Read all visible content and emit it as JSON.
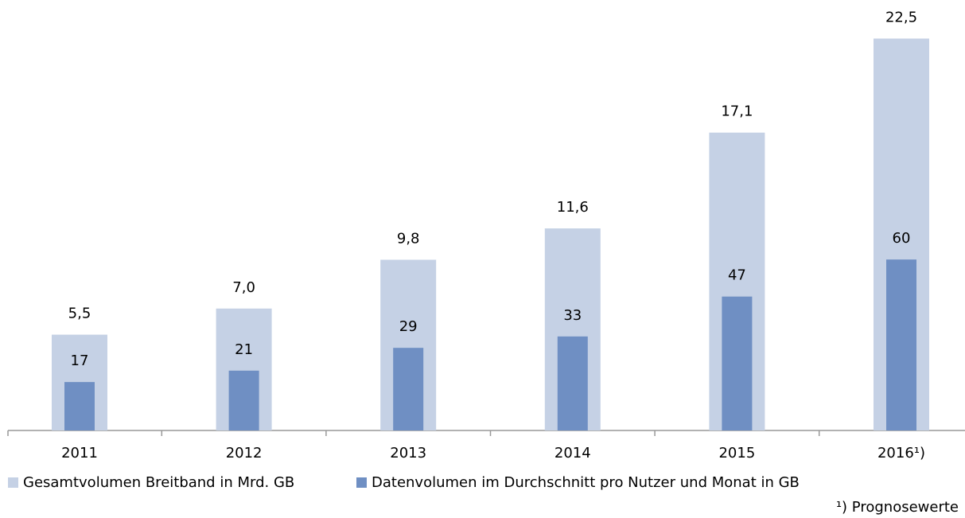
{
  "chart_data": {
    "type": "bar",
    "categories": [
      "2011",
      "2012",
      "2013",
      "2014",
      "2015",
      "2016¹)"
    ],
    "series": [
      {
        "name": "Gesamtvolumen Breitband in Mrd. GB",
        "color": "#c5d1e5",
        "values": [
          5.5,
          7.0,
          9.8,
          11.6,
          17.1,
          22.5
        ],
        "value_labels": [
          "5,5",
          "7,0",
          "9,8",
          "11,6",
          "17,1",
          "22,5"
        ]
      },
      {
        "name": "Datenvolumen im Durchschnitt pro Nutzer und Monat in GB",
        "color": "#6f8fc3",
        "axis": "y2",
        "values": [
          17,
          21,
          29,
          33,
          47,
          60
        ]
      }
    ],
    "ylim": [
      0,
      23.8
    ],
    "y2lim": [
      0,
      145.5
    ],
    "footnote": "¹) Prognosewerte"
  }
}
